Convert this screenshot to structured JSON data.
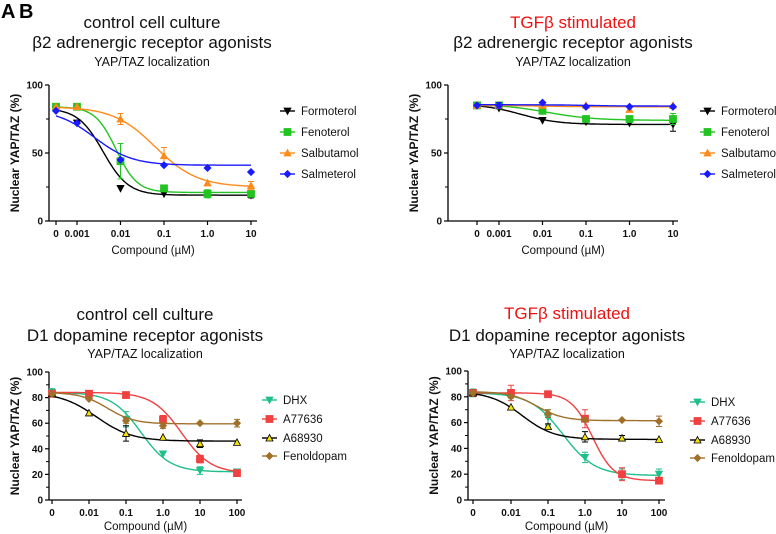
{
  "panel_labels": [
    "A",
    "B"
  ],
  "chart_data": [
    {
      "type": "line",
      "title": [
        "control cell culture",
        "β2 adrenergic receptor agonists",
        "YAP/TAZ localization"
      ],
      "title_red_first_line": false,
      "xlabel": "Compound (µM)",
      "ylabel": "Nuclear YAP/TAZ (%)",
      "x_scale": "log",
      "x": [
        0,
        0.001,
        0.01,
        0.1,
        1.0,
        10
      ],
      "x_tick_labels": [
        "0",
        "0.001",
        "0.01",
        "0.1",
        "1.0",
        "10"
      ],
      "ylim": [
        0,
        100
      ],
      "y_ticks": [
        0,
        50,
        100
      ],
      "y_minor_ticks": [
        25,
        75
      ],
      "legend_position": "right",
      "series": [
        {
          "name": "Formoterol",
          "color": "#000000",
          "marker": "triangle-down",
          "values": [
            82,
            72,
            24,
            20,
            20,
            19
          ],
          "errors": [
            1,
            1,
            1,
            1,
            1,
            2
          ],
          "fit": {
            "top": 83,
            "bottom": 19,
            "logEC50": -2.4,
            "hill": 1.5
          }
        },
        {
          "name": "Fenoterol",
          "color": "#22c422",
          "marker": "square",
          "values": [
            84,
            84,
            44,
            24,
            20,
            20
          ],
          "errors": [
            1,
            1,
            13,
            1,
            3,
            2
          ],
          "fit": {
            "top": 84,
            "bottom": 21,
            "logEC50": -2.1,
            "hill": 1.8
          }
        },
        {
          "name": "Salbutamol",
          "color": "#ff8a1a",
          "marker": "triangle-up",
          "values": [
            84,
            84,
            75,
            48,
            28,
            26
          ],
          "errors": [
            1,
            1,
            4,
            6,
            1,
            3
          ],
          "fit": {
            "top": 84,
            "bottom": 25,
            "logEC50": -1.2,
            "hill": 0.9
          }
        },
        {
          "name": "Salmeterol",
          "color": "#1a1aff",
          "marker": "diamond",
          "values": [
            81,
            72,
            45,
            41,
            39,
            36
          ],
          "errors": [
            1,
            1,
            1,
            1,
            1,
            1
          ],
          "fit": {
            "top": 82,
            "bottom": 41,
            "logEC50": -2.6,
            "hill": 1.0
          }
        }
      ]
    },
    {
      "type": "line",
      "title": [
        "TGFβ stimulated",
        "β2 adrenergic receptor agonists",
        "YAP/TAZ localization"
      ],
      "title_red_first_line": true,
      "xlabel": "Compound (µM)",
      "ylabel": "Nuclear YAP/TAZ (%)",
      "x_scale": "log",
      "x": [
        0,
        0.001,
        0.01,
        0.1,
        1.0,
        10
      ],
      "x_tick_labels": [
        "0",
        "0.001",
        "0.01",
        "0.1",
        "1.0",
        "10"
      ],
      "ylim": [
        0,
        100
      ],
      "y_ticks": [
        0,
        50,
        100
      ],
      "y_minor_ticks": [
        25,
        75
      ],
      "legend_position": "right",
      "series": [
        {
          "name": "Formoterol",
          "color": "#000000",
          "marker": "triangle-down",
          "values": [
            85,
            83,
            74,
            73,
            72,
            71
          ],
          "errors": [
            1,
            1,
            1,
            1,
            1,
            5
          ],
          "fit": {
            "top": 86,
            "bottom": 71,
            "logEC50": -2.5,
            "hill": 1.0
          }
        },
        {
          "name": "Fenoterol",
          "color": "#22c422",
          "marker": "square",
          "values": [
            85,
            85,
            81,
            75,
            75,
            75
          ],
          "errors": [
            1,
            1,
            2,
            1,
            1,
            4
          ],
          "fit": {
            "top": 86,
            "bottom": 74,
            "logEC50": -1.9,
            "hill": 0.8
          }
        },
        {
          "name": "Salbutamol",
          "color": "#ff8a1a",
          "marker": "triangle-up",
          "values": [
            85,
            85,
            85,
            85,
            82,
            85
          ],
          "errors": [
            1,
            1,
            1,
            1,
            1,
            1
          ],
          "fit": {
            "top": 85,
            "bottom": 84,
            "logEC50": -2.0,
            "hill": 1.0
          }
        },
        {
          "name": "Salmeterol",
          "color": "#1a1aff",
          "marker": "diamond",
          "values": [
            85,
            85,
            87,
            84,
            84,
            84
          ],
          "errors": [
            1,
            2,
            1,
            1,
            1,
            1
          ],
          "fit": {
            "top": 85.5,
            "bottom": 84.5,
            "logEC50": -1.0,
            "hill": 1.0
          }
        }
      ]
    },
    {
      "type": "line",
      "title": [
        "control cell culture",
        "D1 dopamine receptor agonists",
        "YAP/TAZ localization"
      ],
      "title_red_first_line": false,
      "xlabel": "Compound (µM)",
      "ylabel": "Nuclear YAP/TAZ (%)",
      "x_scale": "log",
      "x": [
        0,
        0.01,
        0.1,
        1.0,
        10,
        100
      ],
      "x_tick_labels": [
        "0",
        "0.01",
        "0.1",
        "1.0",
        "10",
        "100"
      ],
      "ylim": [
        0,
        100
      ],
      "y_ticks": [
        0,
        20,
        40,
        60,
        80,
        100
      ],
      "y_minor_ticks": [
        10,
        30,
        50,
        70,
        90
      ],
      "legend_position": "right",
      "series": [
        {
          "name": "DHX",
          "color": "#1fbf8a",
          "marker": "triangle-down",
          "values": [
            84,
            83,
            63,
            36,
            23,
            22
          ],
          "errors": [
            3,
            2,
            6,
            1,
            3,
            2
          ],
          "fit": {
            "top": 84,
            "bottom": 22,
            "logEC50": -0.6,
            "hill": 1.1
          }
        },
        {
          "name": "A77636",
          "color": "#f04040",
          "marker": "square",
          "values": [
            83,
            83,
            82,
            63,
            32,
            21
          ],
          "errors": [
            1,
            1,
            1,
            3,
            3,
            2
          ],
          "fit": {
            "top": 84,
            "bottom": 21,
            "logEC50": 0.5,
            "hill": 1.1
          }
        },
        {
          "name": "A68930",
          "color": "#000000",
          "marker": "triangle-up",
          "fill": "#f5e400",
          "values": [
            83,
            68,
            52,
            49,
            44,
            45
          ],
          "errors": [
            1,
            1,
            6,
            1,
            3,
            1
          ],
          "fit": {
            "top": 84,
            "bottom": 46,
            "logEC50": -1.8,
            "hill": 0.9
          }
        },
        {
          "name": "Fenoldopam",
          "color": "#a0702a",
          "marker": "diamond",
          "values": [
            83,
            79,
            62,
            58,
            60,
            60
          ],
          "errors": [
            1,
            1,
            2,
            2,
            1,
            3
          ],
          "fit": {
            "top": 84,
            "bottom": 59.5,
            "logEC50": -1.5,
            "hill": 1.2
          }
        }
      ]
    },
    {
      "type": "line",
      "title": [
        "TGFβ stimulated",
        "D1 dopamine receptor agonists",
        "YAP/TAZ localization"
      ],
      "title_red_first_line": true,
      "xlabel": "Compound (µM)",
      "ylabel": "Nuclear YAP/TAZ (%)",
      "x_scale": "log",
      "x": [
        0,
        0.01,
        0.1,
        1.0,
        10,
        100
      ],
      "x_tick_labels": [
        "0",
        "0.01",
        "0.1",
        "1.0",
        "10",
        "100"
      ],
      "ylim": [
        0,
        100
      ],
      "y_ticks": [
        0,
        20,
        40,
        60,
        80,
        100
      ],
      "y_minor_ticks": [
        10,
        30,
        50,
        70,
        90
      ],
      "legend_position": "right",
      "series": [
        {
          "name": "DHX",
          "color": "#1fbf8a",
          "marker": "triangle-down",
          "values": [
            83,
            81,
            64,
            33,
            20,
            20
          ],
          "errors": [
            3,
            2,
            6,
            4,
            4,
            4
          ],
          "fit": {
            "top": 83,
            "bottom": 19,
            "logEC50": -0.6,
            "hill": 1.0
          }
        },
        {
          "name": "A77636",
          "color": "#f04040",
          "marker": "square",
          "values": [
            83,
            83,
            82,
            63,
            20,
            15
          ],
          "errors": [
            1,
            6,
            1,
            7,
            5,
            1
          ],
          "fit": {
            "top": 83,
            "bottom": 15,
            "logEC50": 0.2,
            "hill": 1.5
          }
        },
        {
          "name": "A68930",
          "color": "#000000",
          "marker": "triangle-up",
          "fill": "#f5e400",
          "values": [
            83,
            72,
            57,
            49,
            48,
            47
          ],
          "errors": [
            1,
            1,
            2,
            4,
            2,
            1
          ],
          "fit": {
            "top": 84,
            "bottom": 47,
            "logEC50": -1.7,
            "hill": 1.0
          }
        },
        {
          "name": "Fenoldopam",
          "color": "#a0702a",
          "marker": "diamond",
          "values": [
            83,
            80,
            67,
            62,
            62,
            61
          ],
          "errors": [
            1,
            1,
            3,
            1,
            1,
            4
          ],
          "fit": {
            "top": 84,
            "bottom": 61.5,
            "logEC50": -1.3,
            "hill": 1.2
          }
        }
      ]
    }
  ]
}
